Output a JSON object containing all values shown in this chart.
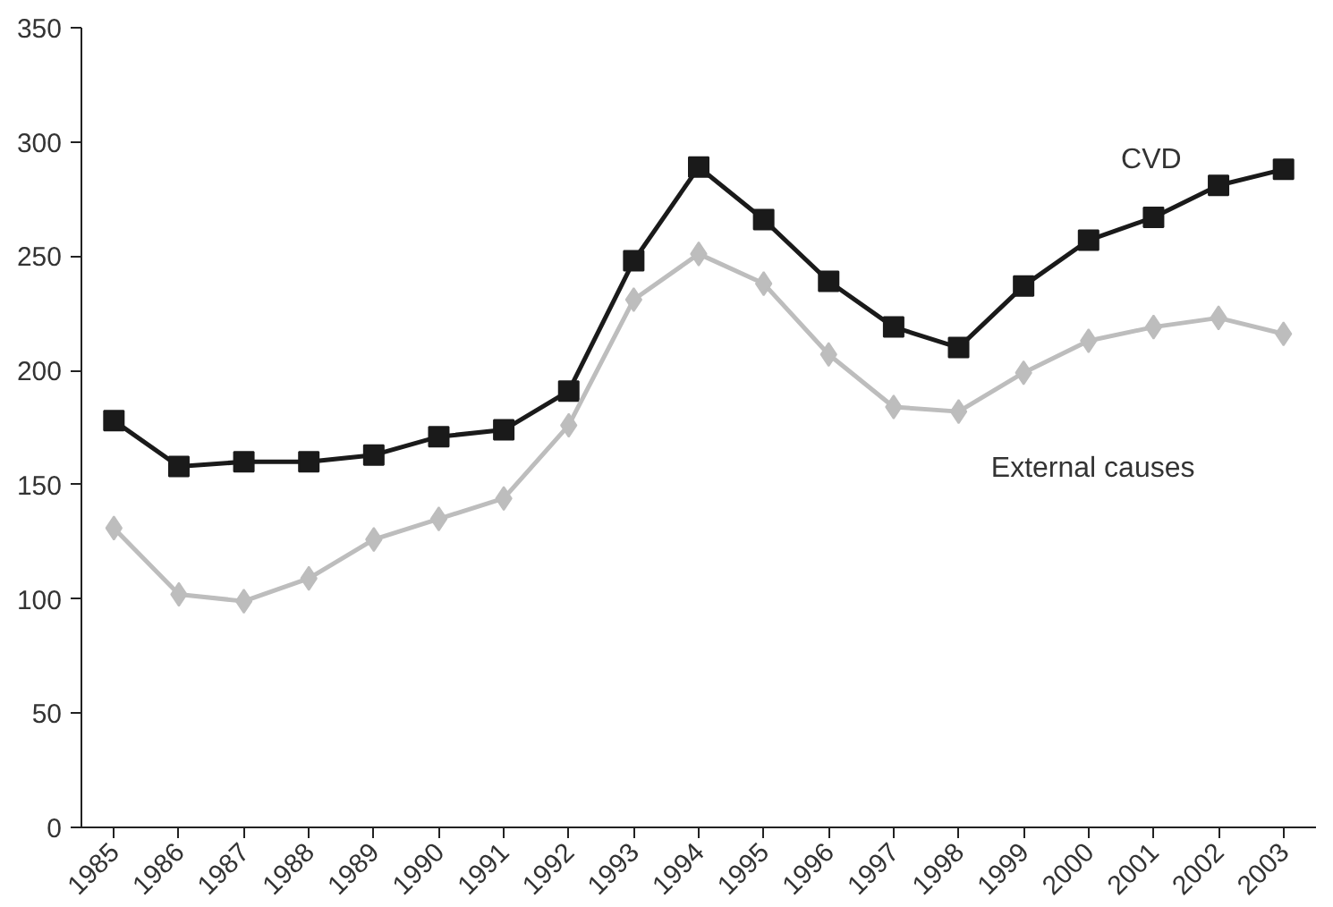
{
  "chart_data": {
    "type": "line",
    "categories": [
      "1985",
      "1986",
      "1987",
      "1988",
      "1989",
      "1990",
      "1991",
      "1992",
      "1993",
      "1994",
      "1995",
      "1996",
      "1997",
      "1998",
      "1999",
      "2000",
      "2001",
      "2002",
      "2003"
    ],
    "series": [
      {
        "name": "CVD",
        "color": "#1a1a1a",
        "marker": "square",
        "values": [
          178,
          158,
          160,
          160,
          163,
          171,
          174,
          191,
          248,
          289,
          266,
          239,
          219,
          210,
          237,
          257,
          267,
          281,
          288
        ]
      },
      {
        "name": "External causes",
        "color": "#bdbdbd",
        "marker": "diamond",
        "values": [
          131,
          102,
          99,
          109,
          126,
          135,
          144,
          176,
          231,
          251,
          238,
          207,
          184,
          182,
          199,
          213,
          219,
          223,
          216
        ]
      }
    ],
    "ylim": [
      0,
      350
    ],
    "yticks": [
      0,
      50,
      100,
      150,
      200,
      250,
      300,
      350
    ],
    "grid": false,
    "line_style": "solid"
  }
}
